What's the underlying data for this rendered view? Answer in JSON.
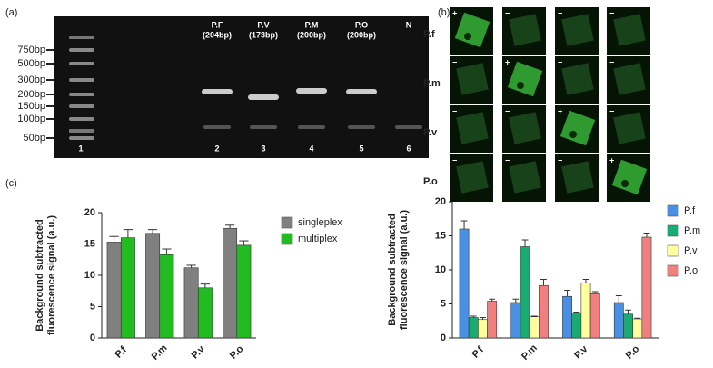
{
  "panels": {
    "a": "(a)",
    "b": "(b)",
    "c": "(c)"
  },
  "gel": {
    "ladder": [
      "750bp",
      "500bp",
      "300bp",
      "200bp",
      "150bp",
      "100bp",
      "50bp"
    ],
    "lanes": [
      [
        "P.F",
        "(204bp)"
      ],
      [
        "P.V",
        "(173bp)"
      ],
      [
        "P.M",
        "(200bp)"
      ],
      [
        "P.O",
        "(200bp)"
      ],
      [
        "N"
      ]
    ],
    "lane_numbers": [
      "1",
      "2",
      "3",
      "4",
      "5",
      "6"
    ]
  },
  "fluorescence": {
    "rows": [
      "P.f",
      "P.m",
      "P.v",
      "P.o"
    ],
    "signs": [
      [
        "+",
        "−",
        "−",
        "−"
      ],
      [
        "−",
        "+",
        "−",
        "−"
      ],
      [
        "−",
        "−",
        "+",
        "−"
      ],
      [
        "−",
        "−",
        "−",
        "+"
      ]
    ]
  },
  "chart_data": [
    {
      "type": "bar",
      "y_label": [
        "Background subtracted",
        "fluorescence signal (a.u.)"
      ],
      "categories": [
        "P.f",
        "P.m",
        "P.v",
        "P.o"
      ],
      "ylim": [
        0,
        20
      ],
      "yticks": [
        0,
        5,
        10,
        15,
        20
      ],
      "series": [
        {
          "name": "singleplex",
          "color": "#808080",
          "values": [
            15.3,
            16.7,
            11.2,
            17.5
          ],
          "errors": [
            0.9,
            0.6,
            0.4,
            0.5
          ]
        },
        {
          "name": "multiplex",
          "color": "#22bb22",
          "values": [
            16.0,
            13.3,
            8.0,
            14.8
          ],
          "errors": [
            1.3,
            0.9,
            0.6,
            0.7
          ]
        }
      ]
    },
    {
      "type": "bar",
      "y_label": [
        "Background subtracted",
        "fluorescence signal (a.u.)"
      ],
      "categories": [
        "P.f",
        "P.m",
        "P.v",
        "P.o"
      ],
      "ylim": [
        0,
        20
      ],
      "yticks": [
        0,
        5,
        10,
        15,
        20
      ],
      "series": [
        {
          "name": "P.f",
          "color": "#4a90e2",
          "values": [
            16.0,
            5.2,
            6.1,
            5.2
          ],
          "errors": [
            1.2,
            0.5,
            0.9,
            1.0
          ]
        },
        {
          "name": "P.m",
          "color": "#1aab73",
          "values": [
            3.0,
            13.4,
            3.7,
            3.5
          ],
          "errors": [
            0.2,
            1.0,
            0.1,
            0.6
          ]
        },
        {
          "name": "P.v",
          "color": "#ffffa0",
          "values": [
            2.7,
            3.1,
            8.1,
            2.8
          ],
          "errors": [
            0.3,
            0.1,
            0.5,
            0.1
          ]
        },
        {
          "name": "P.o",
          "color": "#f08080",
          "values": [
            5.4,
            7.7,
            6.5,
            14.8
          ],
          "errors": [
            0.3,
            0.9,
            0.3,
            0.6
          ]
        }
      ]
    }
  ]
}
